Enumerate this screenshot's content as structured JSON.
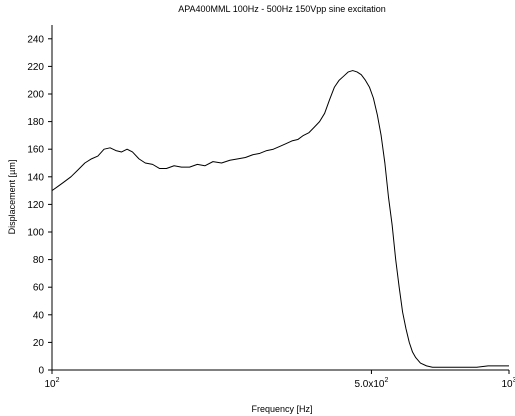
{
  "chart_data": {
    "type": "line",
    "title": "APA400MML 100Hz - 500Hz 150Vpp sine excitation",
    "xlabel": "Frequency [Hz]",
    "ylabel": "Displacement [µm]",
    "x_scale": "log",
    "xlim": [
      100,
      1000
    ],
    "ylim": [
      0,
      250
    ],
    "x_ticks": [
      {
        "value": 100,
        "base": "10",
        "exp": "2",
        "prefix": ""
      },
      {
        "value": 500,
        "base": "10",
        "exp": "2",
        "prefix": "5.0x"
      },
      {
        "value": 1000,
        "base": "10",
        "exp": "3",
        "prefix": ""
      }
    ],
    "y_ticks": [
      0,
      20,
      40,
      60,
      80,
      100,
      120,
      140,
      160,
      180,
      200,
      220,
      240
    ],
    "grid": false,
    "legend": "none",
    "series": [
      {
        "color": "#000000",
        "x": [
          100,
          103,
          106,
          110,
          114,
          118,
          122,
          126,
          130,
          134,
          138,
          142,
          146,
          150,
          155,
          160,
          166,
          172,
          178,
          185,
          192,
          200,
          208,
          216,
          225,
          235,
          245,
          255,
          265,
          275,
          285,
          295,
          305,
          315,
          325,
          335,
          345,
          355,
          365,
          375,
          385,
          395,
          405,
          415,
          425,
          435,
          445,
          455,
          465,
          475,
          485,
          495,
          505,
          515,
          525,
          535,
          545,
          555,
          565,
          575,
          585,
          595,
          605,
          615,
          625,
          640,
          660,
          680,
          700,
          730,
          760,
          800,
          850,
          900,
          950,
          1000
        ],
        "y": [
          130,
          133,
          136,
          140,
          145,
          150,
          153,
          155,
          160,
          161,
          159,
          158,
          160,
          158,
          153,
          150,
          149,
          146,
          146,
          148,
          147,
          147,
          149,
          148,
          151,
          150,
          152,
          153,
          154,
          156,
          157,
          159,
          160,
          162,
          164,
          166,
          167,
          170,
          172,
          176,
          180,
          186,
          196,
          205,
          210,
          213,
          216,
          217,
          216,
          214,
          210,
          205,
          197,
          185,
          170,
          150,
          125,
          105,
          80,
          60,
          42,
          30,
          20,
          13,
          9,
          5,
          3,
          2,
          2,
          2,
          2,
          2,
          2,
          3,
          3,
          3
        ]
      }
    ]
  }
}
